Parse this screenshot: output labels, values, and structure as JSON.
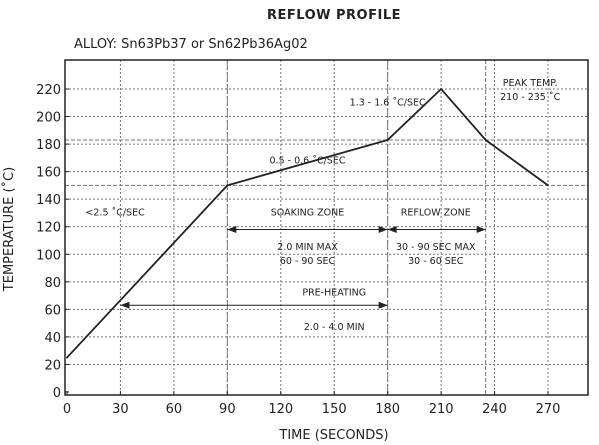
{
  "chart_data": {
    "type": "line",
    "title": "REFLOW  PROFILE",
    "subtitle": "ALLOY: Sn63Pb37 or Sn62Pb36Ag02",
    "xlabel": "TIME (SECONDS)",
    "ylabel": "TEMPERATURE (˚C)",
    "xlim": [
      0,
      300
    ],
    "ylim": [
      0,
      230
    ],
    "xticks": [
      0,
      30,
      60,
      90,
      120,
      150,
      180,
      210,
      240,
      270
    ],
    "yticks": [
      0,
      20,
      40,
      60,
      80,
      100,
      120,
      140,
      160,
      180,
      200,
      220
    ],
    "grid": true,
    "series": [
      {
        "x": [
          0,
          90,
          180,
          210,
          235,
          270
        ],
        "y": [
          25,
          150,
          183,
          220,
          183,
          150
        ]
      }
    ],
    "reference_lines": {
      "horizontal_y": [
        150,
        183
      ],
      "vertical_x": [
        90,
        180,
        235
      ]
    },
    "annotations": [
      {
        "id": "ramp1",
        "text": "<2.5 ˚C/SEC",
        "x": 27,
        "y": 128
      },
      {
        "id": "soak-rate",
        "text": "0.5 - 0.6 ˚C/SEC",
        "x": 135,
        "y": 166
      },
      {
        "id": "ramp2",
        "text": "1.3 - 1.6 ˚C/SEC",
        "x": 180,
        "y": 208
      },
      {
        "id": "peak-label",
        "text": "PEAK TEMP.",
        "x": 260,
        "y": 222
      },
      {
        "id": "peak-range",
        "text": "210 - 235 ˚C",
        "x": 260,
        "y": 212
      },
      {
        "id": "soak-zone",
        "text": "SOAKING ZONE",
        "x": 135,
        "y": 128
      },
      {
        "id": "soak-max",
        "text": "2.0 MIN MAX",
        "x": 135,
        "y": 103
      },
      {
        "id": "soak-sec",
        "text": "60 - 90 SEC",
        "x": 135,
        "y": 93
      },
      {
        "id": "reflow-zone",
        "text": "REFLOW ZONE",
        "x": 207,
        "y": 128
      },
      {
        "id": "reflow-max",
        "text": "30 - 90 SEC MAX",
        "x": 207,
        "y": 103
      },
      {
        "id": "reflow-sec",
        "text": "30 - 60 SEC",
        "x": 207,
        "y": 93
      },
      {
        "id": "preheat",
        "text": "PRE-HEATING",
        "x": 150,
        "y": 70
      },
      {
        "id": "preheat-time",
        "text": "2.0 - 4.0 MIN",
        "x": 150,
        "y": 45
      }
    ],
    "arrows": [
      {
        "name": "soak-arrow",
        "x1": 90,
        "x2": 180,
        "y": 118
      },
      {
        "name": "reflow-arrow",
        "x1": 180,
        "x2": 235,
        "y": 118
      },
      {
        "name": "preheat-arrow",
        "x1": 30,
        "x2": 180,
        "y": 63
      }
    ]
  }
}
